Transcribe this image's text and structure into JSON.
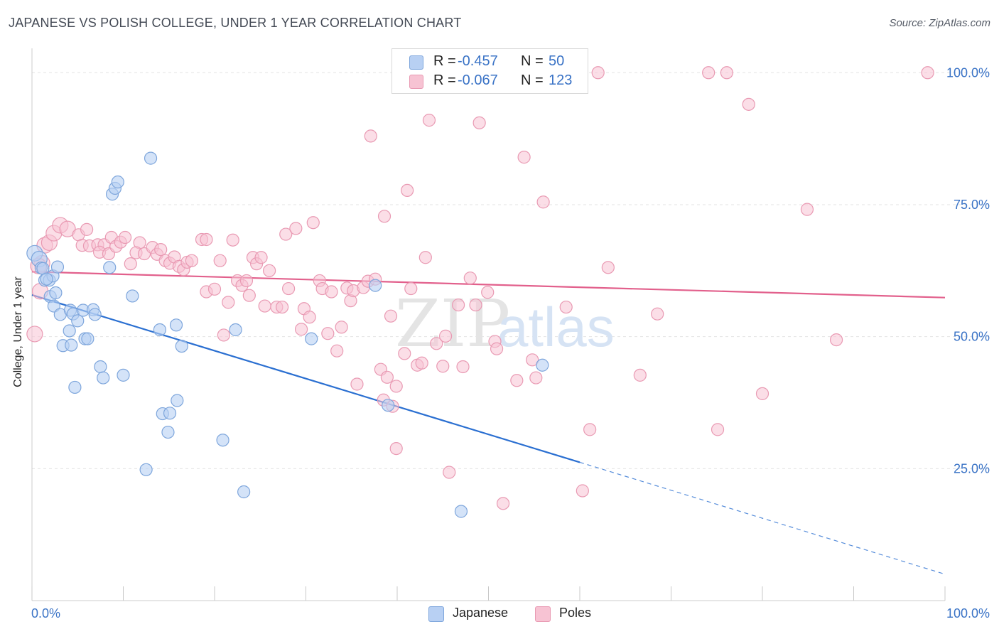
{
  "title": "JAPANESE VS POLISH COLLEGE, UNDER 1 YEAR CORRELATION CHART",
  "source": "Source: ZipAtlas.com",
  "watermark": {
    "zip": "ZIP",
    "atlas": "atlas"
  },
  "legend": {
    "rows": [
      {
        "r_label": "R =",
        "r_value": "-0.457",
        "n_label": "N =",
        "n_value": "50"
      },
      {
        "r_label": "R =",
        "r_value": "-0.067",
        "n_label": "N =",
        "n_value": "123"
      }
    ]
  },
  "bottom_legend": {
    "japanese": "Japanese",
    "poles": "Poles"
  },
  "colors": {
    "japanese_fill": "#b8d0f3",
    "japanese_stroke": "#7ea6dc",
    "japanese_line": "#2a6fd1",
    "poles_fill": "#f7c3d3",
    "poles_stroke": "#e99ab3",
    "poles_line": "#e2608c",
    "value_blue": "#3a73c6",
    "grid": "#e3e3e3"
  },
  "chart_data": {
    "type": "scatter",
    "title": "JAPANESE VS POLISH COLLEGE, UNDER 1 YEAR CORRELATION CHART",
    "xlabel": "",
    "ylabel": "College, Under 1 year",
    "xlim": [
      0,
      100
    ],
    "ylim": [
      0,
      103
    ],
    "x_tick_labels": [
      "0.0%",
      "100.0%"
    ],
    "y_tick_labels": [
      "25.0%",
      "50.0%",
      "75.0%",
      "100.0%"
    ],
    "y_ticks": [
      25,
      50,
      75,
      100
    ],
    "grid": true,
    "legend_position": "top-center",
    "series": [
      {
        "name": "Japanese",
        "r": -0.457,
        "n": 50,
        "trend": {
          "x0": 0,
          "y0": 57.9,
          "x1": 60,
          "y1": 26.2,
          "dash_to_x": 100,
          "dash_to_y": 5.0
        },
        "points": [
          [
            0.3,
            65.8
          ],
          [
            0.8,
            64.7
          ],
          [
            1.0,
            63.0
          ],
          [
            1.2,
            62.9
          ],
          [
            1.4,
            60.7
          ],
          [
            1.9,
            60.7
          ],
          [
            2.3,
            61.5
          ],
          [
            2.8,
            63.2
          ],
          [
            2.0,
            57.6
          ],
          [
            2.6,
            58.3
          ],
          [
            2.4,
            55.8
          ],
          [
            3.1,
            54.2
          ],
          [
            4.2,
            55.0
          ],
          [
            4.5,
            54.3
          ],
          [
            5.6,
            55.0
          ],
          [
            5.0,
            53.0
          ],
          [
            6.7,
            55.1
          ],
          [
            6.9,
            54.2
          ],
          [
            4.1,
            51.1
          ],
          [
            5.8,
            49.6
          ],
          [
            6.1,
            49.6
          ],
          [
            3.4,
            48.3
          ],
          [
            4.3,
            48.4
          ],
          [
            7.5,
            44.3
          ],
          [
            7.8,
            42.2
          ],
          [
            10.0,
            42.7
          ],
          [
            4.7,
            40.4
          ],
          [
            8.5,
            63.1
          ],
          [
            8.8,
            77.0
          ],
          [
            9.1,
            78.1
          ],
          [
            9.4,
            79.3
          ],
          [
            11.0,
            57.7
          ],
          [
            13.0,
            83.8
          ],
          [
            14.0,
            51.3
          ],
          [
            15.8,
            52.2
          ],
          [
            16.4,
            48.2
          ],
          [
            14.3,
            35.4
          ],
          [
            15.1,
            35.5
          ],
          [
            15.9,
            37.9
          ],
          [
            14.9,
            31.9
          ],
          [
            12.5,
            24.8
          ],
          [
            20.9,
            30.4
          ],
          [
            22.3,
            51.3
          ],
          [
            23.2,
            20.6
          ],
          [
            30.6,
            49.6
          ],
          [
            37.6,
            59.7
          ],
          [
            39.0,
            37.0
          ],
          [
            47.0,
            16.9
          ],
          [
            55.9,
            44.6
          ],
          [
            1.6,
            60.9
          ]
        ]
      },
      {
        "name": "Poles",
        "r": -0.067,
        "n": 123,
        "trend": {
          "x0": 0,
          "y0": 62.3,
          "x1": 100,
          "y1": 57.4
        },
        "points": [
          [
            0.3,
            50.5
          ],
          [
            1.1,
            63.9
          ],
          [
            0.9,
            58.6
          ],
          [
            1.4,
            67.3
          ],
          [
            1.9,
            67.8
          ],
          [
            2.4,
            69.6
          ],
          [
            3.1,
            71.1
          ],
          [
            3.9,
            70.4
          ],
          [
            5.1,
            69.3
          ],
          [
            6.0,
            70.3
          ],
          [
            5.5,
            67.3
          ],
          [
            6.3,
            67.2
          ],
          [
            7.2,
            67.4
          ],
          [
            7.9,
            67.4
          ],
          [
            7.4,
            66.0
          ],
          [
            8.4,
            65.7
          ],
          [
            8.7,
            68.8
          ],
          [
            9.2,
            67.1
          ],
          [
            9.7,
            67.9
          ],
          [
            10.2,
            68.8
          ],
          [
            10.8,
            63.8
          ],
          [
            11.8,
            67.8
          ],
          [
            11.4,
            65.9
          ],
          [
            12.3,
            65.7
          ],
          [
            13.2,
            66.9
          ],
          [
            13.7,
            65.6
          ],
          [
            14.1,
            66.5
          ],
          [
            14.6,
            64.4
          ],
          [
            15.1,
            63.9
          ],
          [
            15.6,
            65.1
          ],
          [
            16.1,
            63.3
          ],
          [
            16.6,
            62.7
          ],
          [
            17.0,
            64.1
          ],
          [
            17.5,
            64.4
          ],
          [
            18.6,
            68.4
          ],
          [
            19.1,
            68.4
          ],
          [
            19.1,
            58.5
          ],
          [
            20.0,
            59.0
          ],
          [
            20.6,
            64.4
          ],
          [
            21.0,
            50.3
          ],
          [
            21.5,
            56.5
          ],
          [
            22.0,
            68.3
          ],
          [
            22.5,
            60.6
          ],
          [
            23.0,
            59.7
          ],
          [
            23.5,
            60.6
          ],
          [
            23.8,
            57.8
          ],
          [
            24.2,
            65.0
          ],
          [
            24.6,
            63.8
          ],
          [
            25.1,
            65.0
          ],
          [
            25.5,
            55.8
          ],
          [
            26.0,
            62.5
          ],
          [
            26.8,
            55.6
          ],
          [
            27.4,
            55.6
          ],
          [
            27.8,
            69.4
          ],
          [
            28.1,
            59.1
          ],
          [
            28.9,
            70.5
          ],
          [
            29.5,
            51.4
          ],
          [
            29.8,
            55.3
          ],
          [
            30.4,
            53.7
          ],
          [
            30.8,
            71.6
          ],
          [
            31.5,
            60.6
          ],
          [
            31.8,
            59.1
          ],
          [
            32.4,
            50.6
          ],
          [
            32.8,
            58.5
          ],
          [
            33.4,
            47.3
          ],
          [
            33.9,
            51.8
          ],
          [
            34.5,
            59.2
          ],
          [
            34.9,
            56.8
          ],
          [
            35.2,
            58.7
          ],
          [
            35.6,
            41.0
          ],
          [
            36.3,
            59.3
          ],
          [
            36.8,
            60.5
          ],
          [
            37.1,
            88.0
          ],
          [
            37.6,
            60.9
          ],
          [
            38.2,
            43.8
          ],
          [
            38.5,
            38.0
          ],
          [
            38.9,
            42.3
          ],
          [
            39.3,
            53.9
          ],
          [
            39.9,
            40.6
          ],
          [
            39.5,
            36.8
          ],
          [
            38.6,
            72.8
          ],
          [
            39.9,
            28.8
          ],
          [
            40.8,
            46.8
          ],
          [
            41.1,
            77.7
          ],
          [
            41.5,
            59.1
          ],
          [
            42.2,
            44.6
          ],
          [
            42.7,
            45.0
          ],
          [
            43.1,
            65.0
          ],
          [
            43.5,
            91.0
          ],
          [
            44.3,
            48.7
          ],
          [
            45.0,
            44.4
          ],
          [
            45.3,
            50.1
          ],
          [
            45.7,
            24.3
          ],
          [
            46.7,
            56.0
          ],
          [
            47.2,
            44.3
          ],
          [
            48.0,
            61.1
          ],
          [
            48.6,
            56.0
          ],
          [
            49.0,
            90.5
          ],
          [
            49.9,
            58.4
          ],
          [
            50.7,
            49.1
          ],
          [
            50.9,
            47.7
          ],
          [
            51.6,
            18.4
          ],
          [
            53.1,
            41.7
          ],
          [
            53.9,
            84.0
          ],
          [
            54.8,
            45.6
          ],
          [
            55.2,
            42.2
          ],
          [
            56.0,
            75.5
          ],
          [
            58.5,
            55.6
          ],
          [
            60.3,
            20.8
          ],
          [
            61.1,
            32.4
          ],
          [
            62.0,
            100.0
          ],
          [
            63.1,
            63.1
          ],
          [
            66.6,
            42.7
          ],
          [
            68.5,
            54.3
          ],
          [
            74.1,
            100.0
          ],
          [
            75.1,
            32.4
          ],
          [
            76.1,
            100.0
          ],
          [
            78.5,
            94.0
          ],
          [
            80.0,
            39.2
          ],
          [
            84.9,
            74.1
          ],
          [
            88.1,
            49.4
          ],
          [
            98.1,
            100.0
          ],
          [
            0.7,
            63.4
          ]
        ]
      }
    ]
  }
}
